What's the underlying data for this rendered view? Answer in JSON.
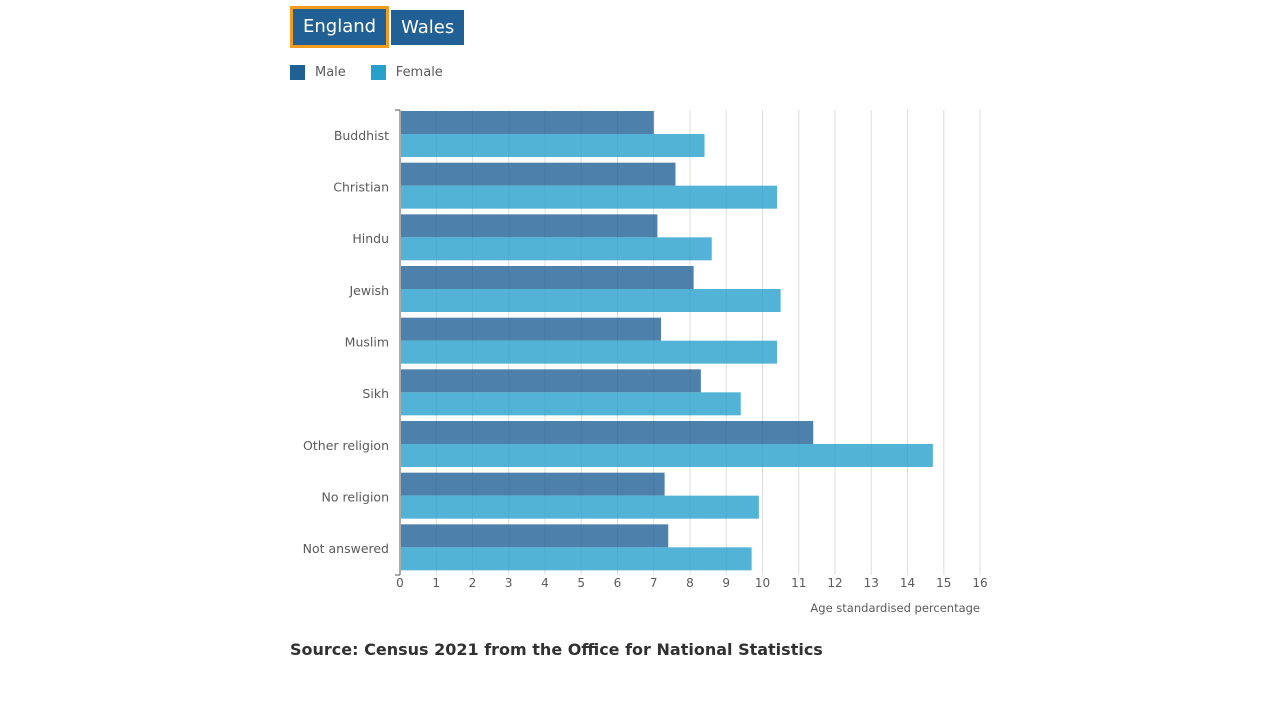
{
  "tabs": [
    {
      "label": "England",
      "active": true
    },
    {
      "label": "Wales",
      "active": false
    }
  ],
  "legend": [
    {
      "label": "Male",
      "color": "#206095"
    },
    {
      "label": "Female",
      "color": "#27a0cc"
    }
  ],
  "source": "Source: Census 2021 from the Office for National Statistics",
  "chart_data": {
    "type": "bar",
    "orientation": "horizontal",
    "categories": [
      "Buddhist",
      "Christian",
      "Hindu",
      "Jewish",
      "Muslim",
      "Sikh",
      "Other religion",
      "No religion",
      "Not answered"
    ],
    "series": [
      {
        "name": "Male",
        "color": "#206095",
        "values": [
          7.0,
          7.6,
          7.1,
          8.1,
          7.2,
          8.3,
          11.4,
          7.3,
          7.4
        ]
      },
      {
        "name": "Female",
        "color": "#27a0cc",
        "values": [
          8.4,
          10.4,
          8.6,
          10.5,
          10.4,
          9.4,
          14.7,
          9.9,
          9.7
        ]
      }
    ],
    "xlabel": "Age standardised percentage",
    "xlim": [
      0,
      16
    ],
    "xticks": [
      "0",
      "1",
      "2",
      "3",
      "4",
      "5",
      "6",
      "7",
      "8",
      "9",
      "10",
      "11",
      "12",
      "13",
      "14",
      "15",
      "16"
    ],
    "grid": true,
    "legend_position": "top-left"
  }
}
